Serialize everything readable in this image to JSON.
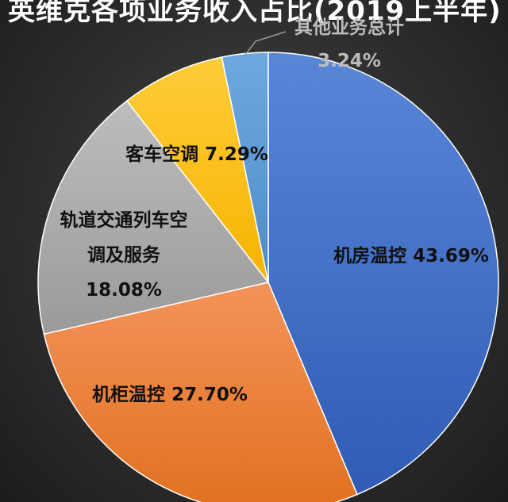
{
  "chart_data": {
    "type": "pie",
    "title": "英维克各项业务收入占比(2019上半年)",
    "slices": [
      {
        "name": "机房温控",
        "value": 43.69,
        "value_label": "43.69%",
        "color": "#4472c4"
      },
      {
        "name": "机柜温控",
        "value": 27.7,
        "value_label": "27.70%",
        "color": "#ed7d31"
      },
      {
        "name": "轨道交通列车空调及服务",
        "value": 18.08,
        "value_label": "18.08%",
        "color": "#a5a5a5"
      },
      {
        "name": "客车空调",
        "value": 7.29,
        "value_label": "7.29%",
        "color": "#ffc000"
      },
      {
        "name": "其他业务总计",
        "value": 3.24,
        "value_label": "3.24%",
        "color": "#5b9bd5"
      }
    ]
  }
}
